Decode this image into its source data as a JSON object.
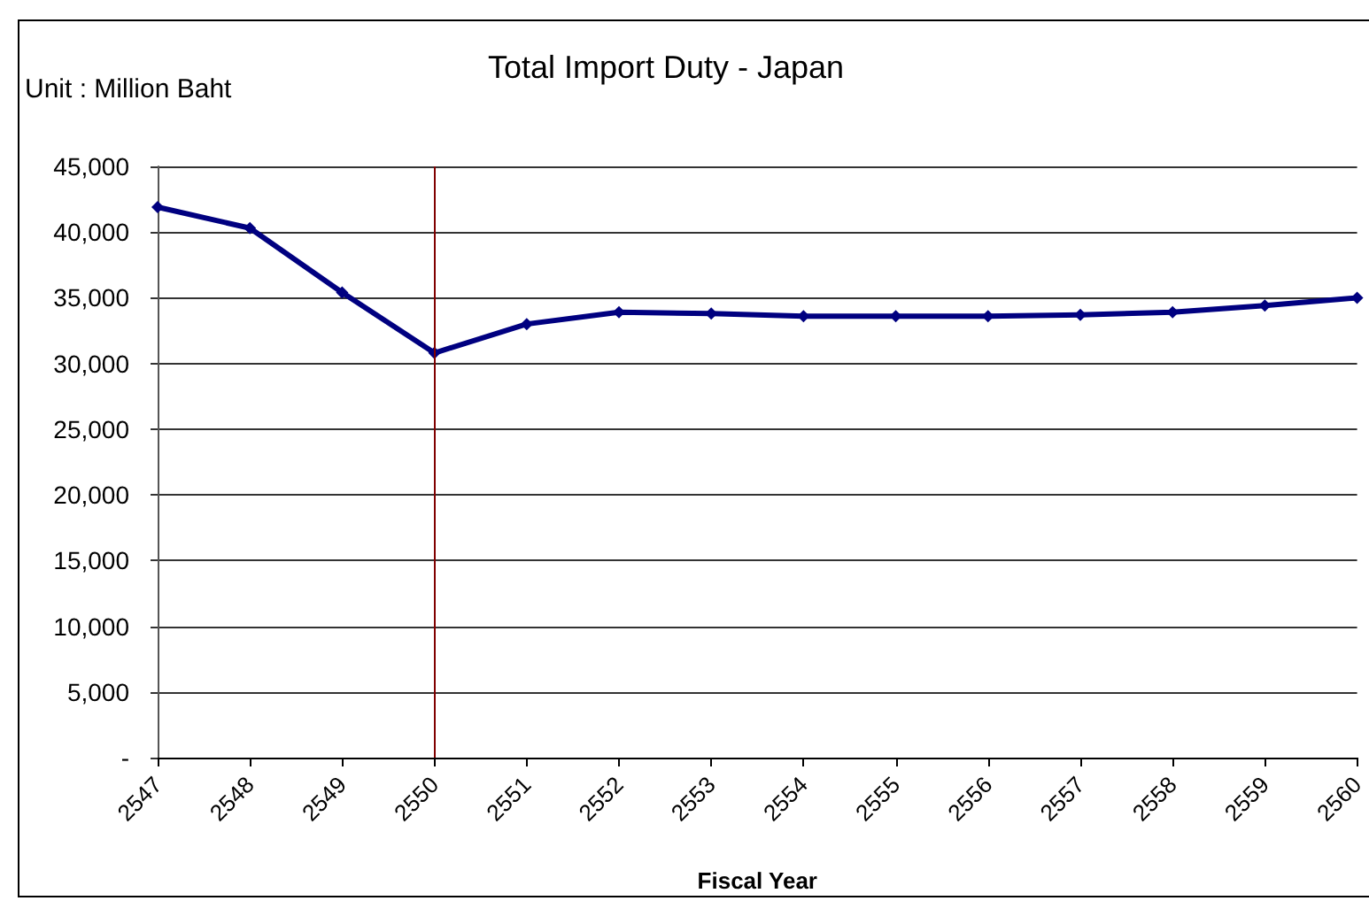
{
  "chart_data": {
    "type": "line",
    "title": "Total Import Duty - Japan",
    "ylabel": "Unit : Million Baht",
    "xlabel": "Fiscal Year",
    "categories": [
      "2547",
      "2548",
      "2549",
      "2550",
      "2551",
      "2552",
      "2553",
      "2554",
      "2555",
      "2556",
      "2557",
      "2558",
      "2559",
      "2560"
    ],
    "series": [
      {
        "color": "#000080",
        "values": [
          41900,
          40300,
          35400,
          30800,
          33000,
          33900,
          33800,
          33600,
          33600,
          33600,
          33700,
          33900,
          34400,
          35000
        ]
      }
    ],
    "ylim": [
      0,
      45000
    ],
    "yticks": [
      {
        "value": 0,
        "label": "-"
      },
      {
        "value": 5000,
        "label": "5,000"
      },
      {
        "value": 10000,
        "label": "10,000"
      },
      {
        "value": 15000,
        "label": "15,000"
      },
      {
        "value": 20000,
        "label": "20,000"
      },
      {
        "value": 25000,
        "label": "25,000"
      },
      {
        "value": 30000,
        "label": "30,000"
      },
      {
        "value": 35000,
        "label": "35,000"
      },
      {
        "value": 40000,
        "label": "40,000"
      },
      {
        "value": 45000,
        "label": "45,000"
      }
    ],
    "grid": "y",
    "marker": "diamond",
    "line_style": "solid",
    "ref_lines": [
      {
        "axis": "x",
        "value": "2550",
        "color": "#800000"
      }
    ]
  }
}
